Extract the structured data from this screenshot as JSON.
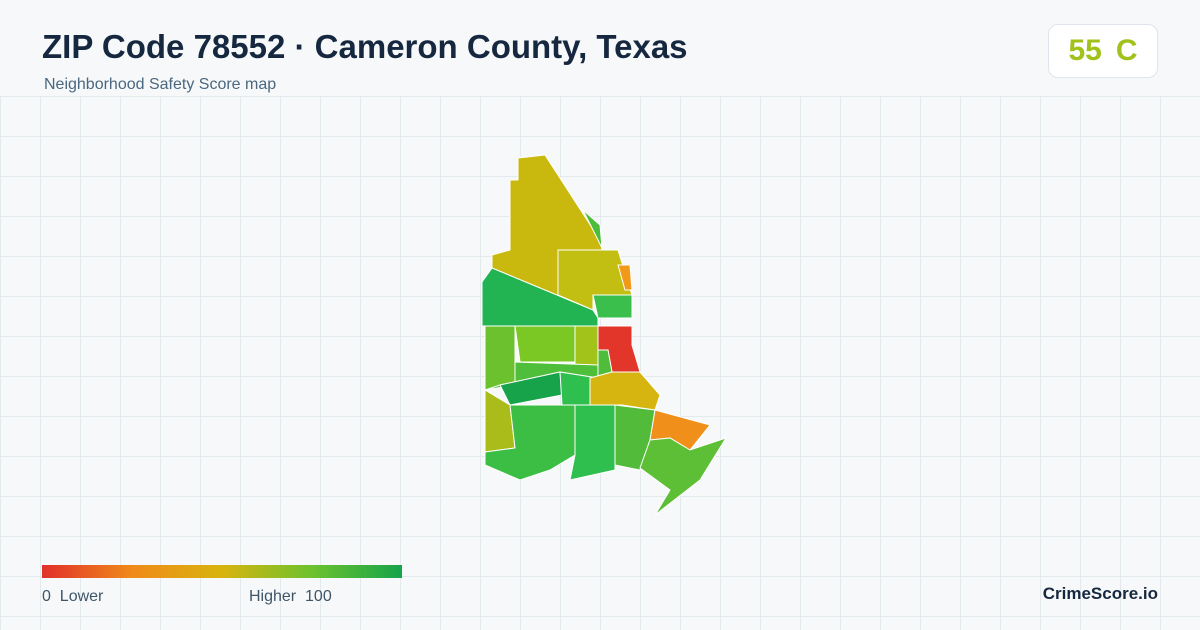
{
  "header": {
    "title": "ZIP Code 78552 · Cameron County, Texas",
    "subtitle": "Neighborhood Safety Score map"
  },
  "score": {
    "value": 55,
    "grade": "C"
  },
  "legend": {
    "min": 0,
    "min_label": "Lower",
    "max_label": "Higher",
    "max": 100
  },
  "brand": "CrimeScore.io"
}
